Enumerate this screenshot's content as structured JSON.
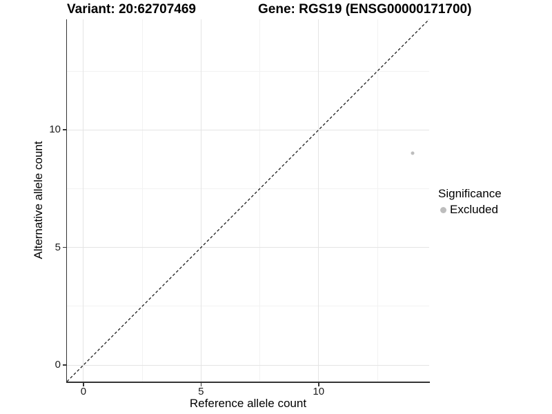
{
  "chart_data": {
    "type": "scatter",
    "title_left": "Variant: 20:62707469",
    "title_right": "Gene: RGS19 (ENSG00000171700)",
    "xlabel": "Reference allele count",
    "ylabel": "Alternative allele count",
    "xlim": [
      -0.7,
      14.7
    ],
    "ylim": [
      -0.7,
      14.7
    ],
    "x_major_ticks": [
      0,
      5,
      10
    ],
    "y_major_ticks": [
      0,
      5,
      10
    ],
    "x_minor_ticks": [
      2.5,
      7.5,
      12.5
    ],
    "y_minor_ticks": [
      2.5,
      7.5,
      12.5
    ],
    "grid": true,
    "legend_position": "right",
    "identity_line": {
      "style": "dashed",
      "from": [
        -0.7,
        -0.7
      ],
      "to": [
        14.7,
        14.7
      ],
      "color": "#1a1a1a"
    },
    "series": [
      {
        "name": "Excluded",
        "color": "#bdbdbd",
        "points": [
          {
            "x": 14,
            "y": 9
          }
        ]
      }
    ],
    "legend": {
      "title": "Significance",
      "entries": [
        {
          "label": "Excluded",
          "color": "#bdbdbd"
        }
      ]
    }
  },
  "colors": {
    "background": "#ffffff",
    "grid_major": "#e4e4e4",
    "grid_minor": "#f2f2f2",
    "axis_line": "#333333",
    "point": "#bdbdbd",
    "dashed_line": "#1a1a1a"
  }
}
